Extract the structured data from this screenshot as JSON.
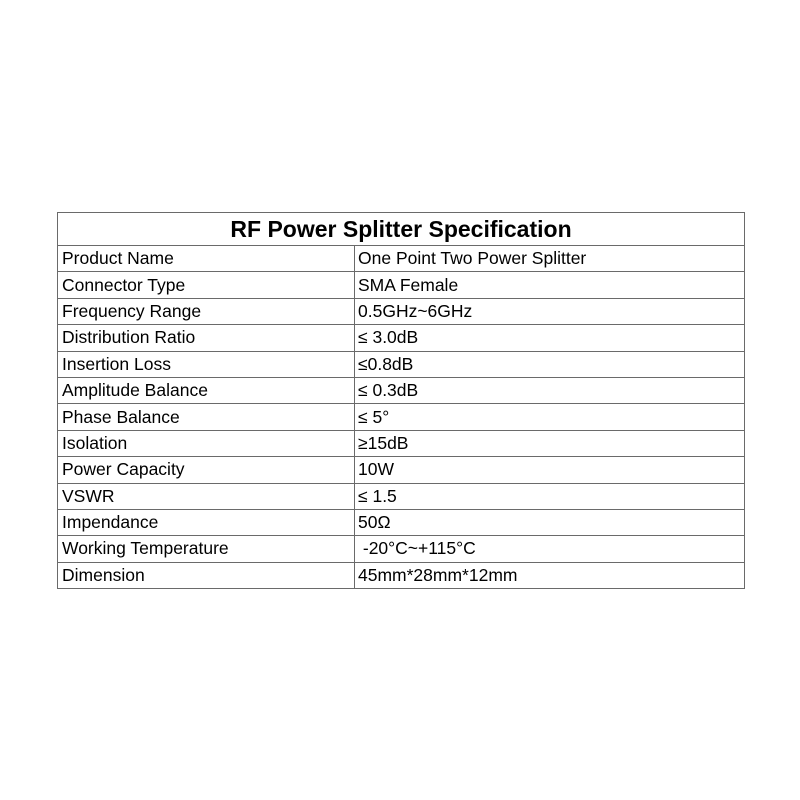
{
  "title": "RF Power Splitter Specification",
  "rows": [
    {
      "label": "Product Name",
      "value": "One Point Two Power Splitter"
    },
    {
      "label": "Connector Type",
      "value": "SMA Female"
    },
    {
      "label": "Frequency Range",
      "value": "0.5GHz~6GHz"
    },
    {
      "label": "Distribution Ratio",
      "value": "≤ 3.0dB"
    },
    {
      "label": "Insertion Loss",
      "value": "≤0.8dB"
    },
    {
      "label": "Amplitude Balance",
      "value": "≤ 0.3dB"
    },
    {
      "label": "Phase Balance",
      "value": "≤ 5°"
    },
    {
      "label": "Isolation",
      "value": "≥15dB"
    },
    {
      "label": "Power Capacity",
      "value": "10W"
    },
    {
      "label": "VSWR",
      "value": "≤ 1.5"
    },
    {
      "label": "Impendance",
      "value": "50Ω"
    },
    {
      "label": "Working Temperature",
      "value": " -20°C~+115°C"
    },
    {
      "label": "Dimension",
      "value": "45mm*28mm*12mm"
    }
  ]
}
